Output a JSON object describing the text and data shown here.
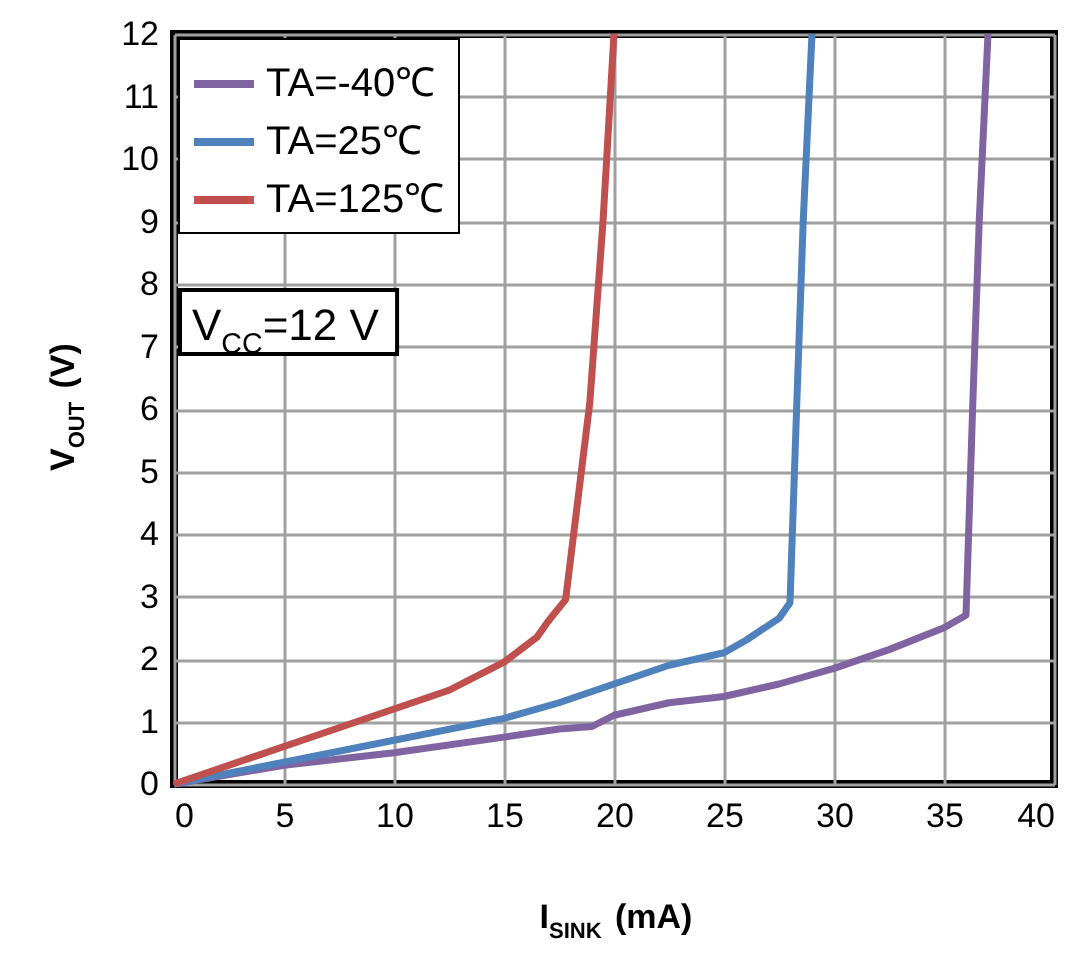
{
  "chart_data": {
    "type": "line",
    "xlabel": "I$_{SINK}$ (mA)",
    "ylabel": "V$_{OUT}$ (V)",
    "xlim": [
      0,
      40
    ],
    "xticks": [
      0,
      5,
      10,
      15,
      20,
      25,
      30,
      35,
      40
    ],
    "ylim": [
      0,
      12
    ],
    "yticks": [
      0,
      1,
      2,
      3,
      4,
      5,
      6,
      7,
      8,
      9,
      10,
      11,
      12
    ],
    "grid": true,
    "legend": "top left",
    "marker": "none",
    "line_style": "solid",
    "annotations": [
      "V$_{CC}$=12 V"
    ],
    "series": [
      {
        "name": "TA=-40℃",
        "color": "#8064a2",
        "x": [
          0,
          5,
          10,
          15,
          17.5,
          19,
          20,
          22.5,
          25,
          27.5,
          30,
          32.5,
          35,
          36,
          36.3,
          36.6,
          37
        ],
        "values": [
          0,
          0.3,
          0.5,
          0.75,
          0.88,
          0.92,
          1.1,
          1.3,
          1.4,
          1.6,
          1.85,
          2.15,
          2.5,
          2.7,
          6,
          9,
          12
        ]
      },
      {
        "name": "TA=25℃",
        "color": "#4f81bd",
        "x": [
          0,
          5,
          10,
          15,
          17.5,
          20,
          22.5,
          25,
          26,
          27.5,
          28,
          28.3,
          28.6,
          29
        ],
        "values": [
          0,
          0.35,
          0.7,
          1.05,
          1.3,
          1.6,
          1.9,
          2.1,
          2.3,
          2.65,
          2.9,
          6,
          9,
          12
        ]
      },
      {
        "name": "TA=125℃",
        "color": "#c0504d",
        "x": [
          0,
          5,
          10,
          12.5,
          15,
          16.5,
          17,
          17.8,
          18.9,
          19.5,
          20
        ],
        "values": [
          0,
          0.6,
          1.2,
          1.5,
          1.95,
          2.35,
          2.6,
          2.95,
          6.1,
          9,
          12
        ]
      }
    ]
  }
}
